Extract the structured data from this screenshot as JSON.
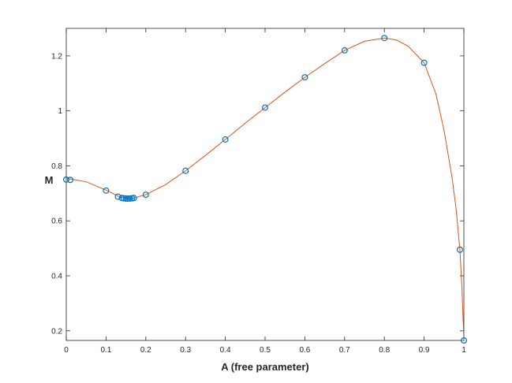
{
  "chart_data": {
    "type": "scatter",
    "title": "",
    "xlabel": "A (free parameter)",
    "ylabel": "M",
    "xlim": [
      0,
      1
    ],
    "ylim": [
      0.165,
      1.3
    ],
    "x_ticks": [
      0,
      0.1,
      0.2,
      0.3,
      0.4,
      0.5,
      0.6,
      0.7,
      0.8,
      0.9,
      1
    ],
    "x_tick_labels": [
      "0",
      "0.1",
      "0.2",
      "0.3",
      "0.4",
      "0.5",
      "0.6",
      "0.7",
      "0.8",
      "0.9",
      "1"
    ],
    "y_ticks": [
      0.2,
      0.4,
      0.6,
      0.8,
      1.0,
      1.2
    ],
    "y_tick_labels": [
      "0.2",
      "0.4",
      "0.6",
      "0.8",
      "1",
      "1.2"
    ],
    "grid": false,
    "colors": {
      "markers": "#0072BD",
      "curve": "#D95319",
      "axes": "#262626"
    },
    "series": [
      {
        "type": "scatter",
        "marker": "circle",
        "x": [
          0,
          0.01,
          0.1,
          0.13,
          0.14,
          0.145,
          0.15,
          0.155,
          0.16,
          0.165,
          0.17,
          0.2,
          0.3,
          0.4,
          0.5,
          0.6,
          0.7,
          0.8,
          0.9,
          0.99,
          1.0
        ],
        "y": [
          0.75,
          0.749,
          0.71,
          0.688,
          0.683,
          0.682,
          0.681,
          0.681,
          0.681,
          0.682,
          0.683,
          0.695,
          0.782,
          0.896,
          1.012,
          1.122,
          1.22,
          1.265,
          1.175,
          0.495,
          0.165
        ]
      },
      {
        "type": "line",
        "x": [
          0,
          0.05,
          0.1,
          0.13,
          0.155,
          0.17,
          0.2,
          0.25,
          0.3,
          0.35,
          0.4,
          0.45,
          0.5,
          0.55,
          0.6,
          0.65,
          0.7,
          0.75,
          0.8,
          0.83,
          0.86,
          0.9,
          0.93,
          0.95,
          0.97,
          0.98,
          0.99,
          0.995,
          1.0
        ],
        "y": [
          0.755,
          0.742,
          0.712,
          0.69,
          0.68,
          0.683,
          0.695,
          0.732,
          0.782,
          0.838,
          0.896,
          0.955,
          1.012,
          1.068,
          1.122,
          1.172,
          1.22,
          1.253,
          1.265,
          1.258,
          1.235,
          1.175,
          1.06,
          0.93,
          0.76,
          0.65,
          0.495,
          0.36,
          0.165
        ]
      }
    ]
  }
}
